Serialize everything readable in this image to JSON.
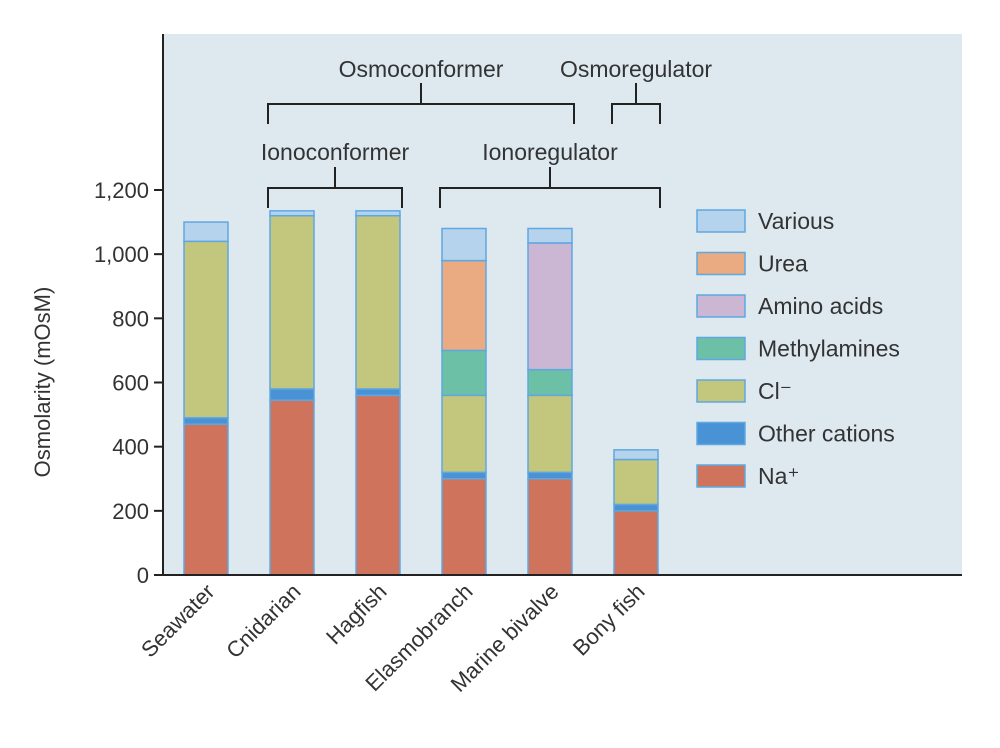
{
  "chart_data": {
    "type": "bar",
    "stacked": true,
    "ylabel": "Osmolarity (mOsM)",
    "ylim": [
      0,
      1200
    ],
    "yticks": [
      0,
      200,
      400,
      600,
      800,
      1000,
      1200
    ],
    "ytick_labels": [
      "0",
      "200",
      "400",
      "600",
      "800",
      "1,000",
      "1,200"
    ],
    "categories": [
      "Seawater",
      "Cnidarian",
      "Hagfish",
      "Elasmobranch",
      "Marine bivalve",
      "Bony fish"
    ],
    "series": [
      {
        "name": "Na⁺",
        "color": "#cf735d",
        "values": [
          470,
          545,
          560,
          300,
          300,
          200
        ]
      },
      {
        "name": "Other cations",
        "color": "#4a92d6",
        "values": [
          20,
          35,
          20,
          20,
          20,
          20
        ]
      },
      {
        "name": "Cl⁻",
        "color": "#c3c77e",
        "values": [
          550,
          540,
          540,
          240,
          240,
          140
        ]
      },
      {
        "name": "Methylamines",
        "color": "#6cc0a6",
        "values": [
          0,
          0,
          0,
          140,
          80,
          0
        ]
      },
      {
        "name": "Amino acids",
        "color": "#cbb6d3",
        "values": [
          0,
          0,
          0,
          0,
          395,
          0
        ]
      },
      {
        "name": "Urea",
        "color": "#eaaa82",
        "values": [
          0,
          0,
          0,
          280,
          0,
          0
        ]
      },
      {
        "name": "Various",
        "color": "#b6d3ee",
        "values": [
          60,
          15,
          15,
          100,
          45,
          30
        ]
      }
    ],
    "legend_order": [
      "Various",
      "Urea",
      "Amino acids",
      "Methylamines",
      "Cl⁻",
      "Other cations",
      "Na⁺"
    ],
    "legend_placement": "right",
    "grid": false,
    "annotations": [
      {
        "label": "Osmoconformer",
        "from": "Cnidarian",
        "to": "Marine bivalve",
        "level": 1
      },
      {
        "label": "Osmoregulator",
        "from": "Bony fish",
        "to": "Bony fish",
        "level": 1
      },
      {
        "label": "Ionoconformer",
        "from": "Cnidarian",
        "to": "Hagfish",
        "level": 0
      },
      {
        "label": "Ionoregulator",
        "from": "Elasmobranch",
        "to": "Bony fish",
        "level": 0
      }
    ],
    "colors": {
      "plot_background": "#dde9ef",
      "axis": "#222222",
      "bar_outline": "#5fa7e0"
    }
  }
}
